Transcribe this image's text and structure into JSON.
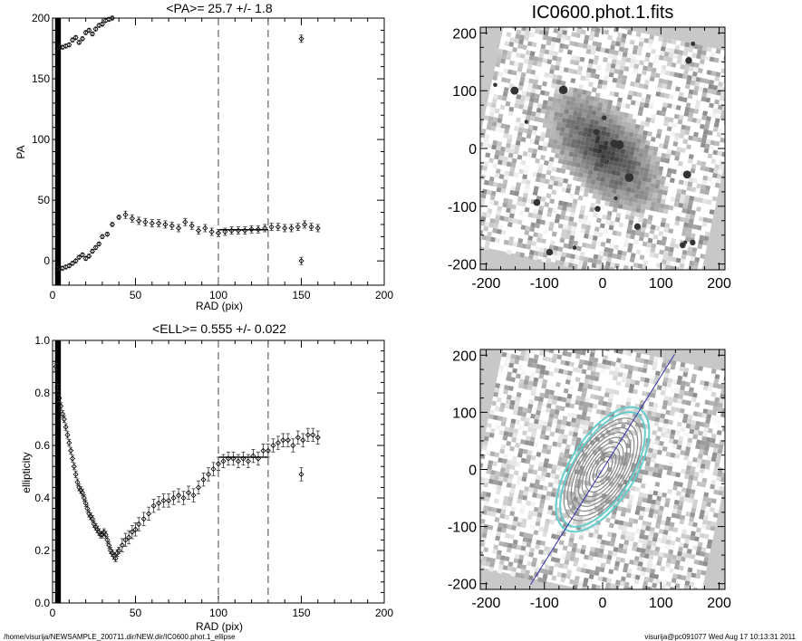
{
  "footer": {
    "left": "/home/visurija/NEWSAMPLE_200711.dir/NEW.dir/IC0600.phot.1_ellipse",
    "right": "visurija@pc091077  Wed Aug 17 10:13:31 2011"
  },
  "image_panel": {
    "title": "IC0600.phot.1.fits",
    "ticks": [
      "-200",
      "-100",
      "0",
      "100",
      "200"
    ],
    "range": [
      -210,
      210
    ]
  },
  "chart_data": [
    {
      "type": "scatter",
      "title": "<PA>=  25.7 +/-   1.8",
      "xlabel": "RAD (pix)",
      "ylabel": "PA",
      "xlim": [
        0,
        200
      ],
      "ylim": [
        -20,
        200
      ],
      "xticks": [
        "0",
        "50",
        "100",
        "150",
        "200"
      ],
      "yticks": [
        "0",
        "50",
        "100",
        "150",
        "200"
      ],
      "vlines": [
        100,
        130
      ],
      "mean_segment": {
        "x": [
          100,
          130
        ],
        "y": 25.7
      },
      "series": [
        {
          "x": [
            3,
            4,
            6,
            8,
            10,
            12,
            14,
            16,
            18,
            20,
            22,
            24,
            26,
            28,
            30,
            33,
            36
          ],
          "y": [
            -6,
            -7,
            -6,
            -5,
            -4,
            -2,
            0,
            3,
            5,
            2,
            4,
            8,
            11,
            14,
            20,
            22,
            30
          ]
        },
        {
          "x": [
            40,
            44,
            48,
            52,
            56,
            60,
            64,
            68,
            72,
            76,
            80,
            84,
            88,
            92,
            96,
            100,
            104,
            108,
            112,
            116,
            120,
            124,
            128,
            132,
            136,
            140,
            144,
            148,
            152,
            156,
            160
          ],
          "y": [
            36,
            38,
            35,
            33,
            32,
            31,
            31,
            30,
            29,
            27,
            32,
            29,
            25,
            27,
            24,
            23,
            24,
            25,
            25,
            25,
            26,
            26,
            27,
            28,
            28,
            27,
            27,
            28,
            30,
            28,
            27
          ]
        },
        {
          "x": [
            3,
            4,
            6,
            8,
            10,
            12,
            14,
            16,
            18,
            20,
            22,
            24,
            26,
            28,
            30,
            32,
            34,
            36
          ],
          "y": [
            175,
            176,
            176,
            177,
            178,
            182,
            184,
            180,
            183,
            188,
            190,
            187,
            191,
            194,
            195,
            198,
            199,
            200
          ]
        },
        {
          "x": [
            150,
            150
          ],
          "y": [
            183,
            0
          ]
        }
      ]
    },
    {
      "type": "scatter",
      "title": "<ELL>= 0.555 +/-  0.022",
      "xlabel": "RAD (pix)",
      "ylabel": "ellipticity",
      "xlim": [
        0,
        200
      ],
      "ylim": [
        0,
        1
      ],
      "xticks": [
        "0",
        "50",
        "100",
        "150",
        "200"
      ],
      "yticks": [
        "0.0",
        "0.2",
        "0.4",
        "0.6",
        "0.8",
        "1.0"
      ],
      "vlines": [
        100,
        130
      ],
      "mean_segment": {
        "x": [
          100,
          130
        ],
        "y": 0.555
      },
      "series": [
        {
          "x": [
            2,
            3,
            4,
            5,
            6,
            7,
            8,
            9,
            10,
            11,
            12,
            13,
            14,
            15,
            16,
            17,
            18,
            19,
            20,
            21,
            22,
            23,
            24,
            25,
            26,
            27,
            28,
            29,
            30,
            31,
            32,
            33,
            34,
            35,
            36,
            37,
            38,
            39,
            40,
            42,
            44,
            46,
            48,
            50,
            52,
            55,
            58,
            61,
            64,
            67,
            70,
            73,
            76,
            79,
            82,
            85,
            88,
            91,
            94,
            97,
            100,
            103,
            106,
            109,
            112,
            115,
            118,
            121,
            124,
            127,
            130,
            133,
            136,
            139,
            142,
            145,
            148,
            151,
            154,
            157,
            160
          ],
          "y": [
            0.9,
            0.82,
            0.78,
            0.75,
            0.72,
            0.7,
            0.67,
            0.64,
            0.61,
            0.58,
            0.55,
            0.52,
            0.49,
            0.46,
            0.44,
            0.43,
            0.42,
            0.4,
            0.38,
            0.36,
            0.34,
            0.33,
            0.32,
            0.3,
            0.29,
            0.28,
            0.27,
            0.26,
            0.26,
            0.27,
            0.26,
            0.24,
            0.22,
            0.2,
            0.19,
            0.18,
            0.17,
            0.19,
            0.2,
            0.22,
            0.24,
            0.25,
            0.27,
            0.28,
            0.3,
            0.32,
            0.34,
            0.37,
            0.38,
            0.39,
            0.39,
            0.4,
            0.41,
            0.4,
            0.42,
            0.41,
            0.44,
            0.47,
            0.49,
            0.51,
            0.53,
            0.54,
            0.55,
            0.55,
            0.54,
            0.55,
            0.54,
            0.56,
            0.55,
            0.58,
            0.58,
            0.6,
            0.61,
            0.62,
            0.62,
            0.6,
            0.63,
            0.62,
            0.64,
            0.64,
            0.63
          ]
        },
        {
          "x": [
            150
          ],
          "y": [
            0.49
          ]
        }
      ]
    }
  ]
}
